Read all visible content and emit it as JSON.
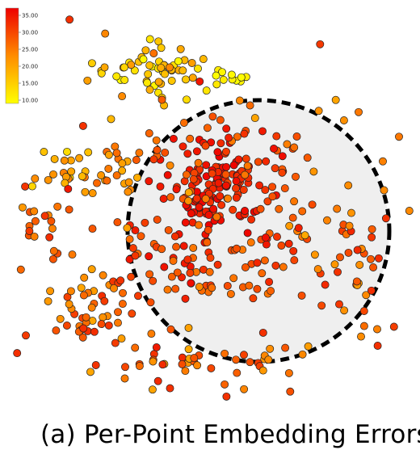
{
  "caption": "(a) Per-Point Embedding Errors",
  "chart_data": {
    "type": "scatter",
    "title": "",
    "xlabel": "",
    "ylabel": "",
    "grid": false,
    "axes_visible": false,
    "colorbar": {
      "placement": "top-left",
      "ticks": [
        "35.00",
        "30.00",
        "25.00",
        "20.00",
        "15.00",
        "10.00"
      ],
      "range": [
        10,
        37
      ],
      "colors": [
        "#ffff00",
        "#ff8c00",
        "#ee0000"
      ]
    },
    "marker": {
      "shape": "circle",
      "edge_color": "#222222"
    },
    "highlight_region": {
      "shape": "circle",
      "style": "dashed",
      "fill": "#efefef",
      "stroke": "#000000"
    },
    "clusters": [
      {
        "name": "center",
        "cx": 0.0,
        "cy": 0.15,
        "sx": 0.13,
        "sy": 0.13,
        "n": 120,
        "err": [
          31,
          37
        ]
      },
      {
        "name": "ring",
        "cx": 0.0,
        "cy": 0.05,
        "r": 0.58,
        "spread": 0.25,
        "n": 150,
        "err": [
          25,
          36
        ]
      },
      {
        "name": "top-yellow",
        "cx": -0.42,
        "cy": 0.88,
        "sx": 0.17,
        "sy": 0.1,
        "n": 55,
        "err": [
          10,
          22
        ]
      },
      {
        "name": "top-small",
        "cx": 0.08,
        "cy": 0.84,
        "sx": 0.05,
        "sy": 0.04,
        "n": 12,
        "err": [
          10,
          16
        ]
      },
      {
        "name": "left-cluster",
        "cx": -0.95,
        "cy": 0.28,
        "sx": 0.11,
        "sy": 0.07,
        "n": 22,
        "err": [
          14,
          26
        ]
      },
      {
        "name": "mid-left",
        "cx": -0.6,
        "cy": 0.3,
        "sx": 0.07,
        "sy": 0.06,
        "n": 16,
        "err": [
          18,
          28
        ]
      },
      {
        "name": "far-left",
        "cx": -1.1,
        "cy": -0.05,
        "sx": 0.1,
        "sy": 0.12,
        "n": 20,
        "err": [
          22,
          32
        ]
      },
      {
        "name": "bottom-left",
        "cx": -0.78,
        "cy": -0.55,
        "sx": 0.2,
        "sy": 0.13,
        "n": 55,
        "err": [
          20,
          33
        ]
      },
      {
        "name": "bottom",
        "cx": -0.05,
        "cy": -0.88,
        "sx": 0.3,
        "sy": 0.08,
        "n": 45,
        "err": [
          20,
          33
        ]
      },
      {
        "name": "right",
        "cx": 0.85,
        "cy": -0.3,
        "sx": 0.15,
        "sy": 0.3,
        "n": 45,
        "err": [
          22,
          34
        ]
      },
      {
        "name": "scatter",
        "cx": 0.0,
        "cy": 0.1,
        "sx": 0.75,
        "sy": 0.65,
        "n": 70,
        "err": [
          20,
          35
        ]
      }
    ]
  }
}
